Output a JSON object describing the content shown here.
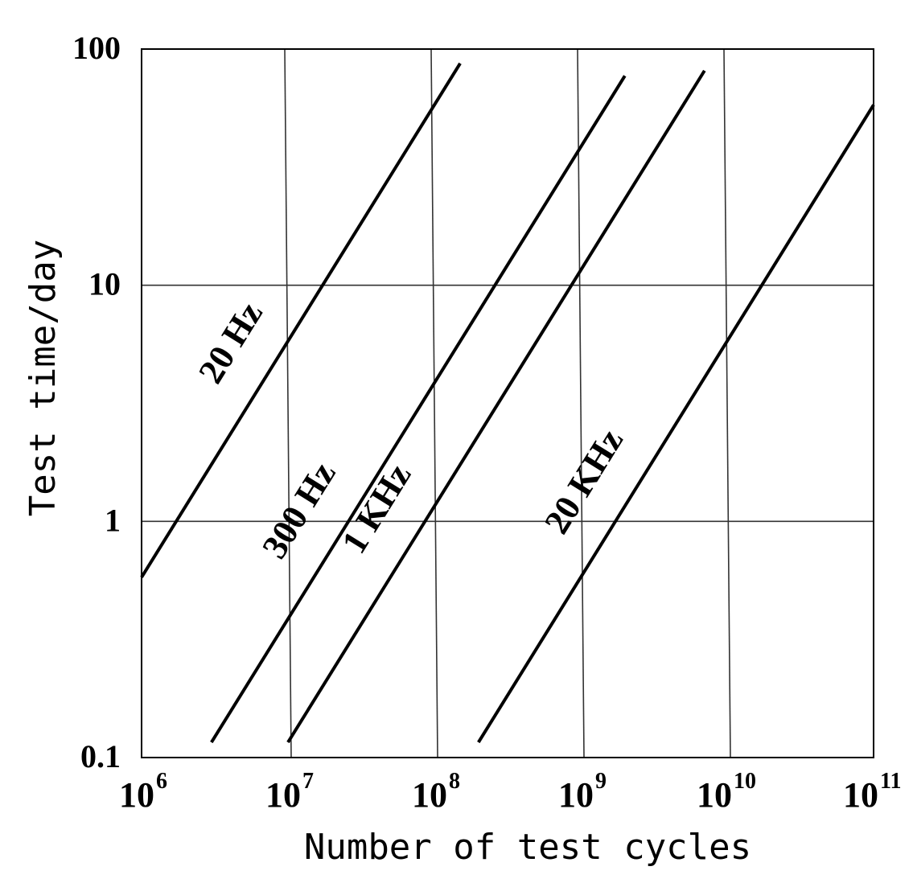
{
  "chart_data": {
    "type": "line",
    "xlabel": "Number of test cycles",
    "ylabel": "Test time/day",
    "x_scale": "log",
    "y_scale": "log",
    "xlim": [
      1000000,
      100000000000
    ],
    "ylim": [
      0.1,
      100
    ],
    "x_ticks": [
      {
        "base": "10",
        "exp": "6"
      },
      {
        "base": "10",
        "exp": "7"
      },
      {
        "base": "10",
        "exp": "8"
      },
      {
        "base": "10",
        "exp": "9"
      },
      {
        "base": "10",
        "exp": "10"
      },
      {
        "base": "10",
        "exp": "11"
      }
    ],
    "x_tick_values": [
      1000000,
      10000000,
      100000000,
      1000000000,
      10000000000,
      100000000000
    ],
    "y_ticks": [
      "0.1",
      "1",
      "10",
      "100"
    ],
    "y_tick_values": [
      0.1,
      1,
      10,
      100
    ],
    "grid": true,
    "series": [
      {
        "name": "20 Hz",
        "x": [
          1000000,
          150000000
        ],
        "y": [
          0.58,
          87
        ]
      },
      {
        "name": "300 Hz",
        "x": [
          3000000,
          2000000000
        ],
        "y": [
          0.116,
          77
        ]
      },
      {
        "name": "1 KHz",
        "x": [
          10000000,
          7000000000
        ],
        "y": [
          0.116,
          81
        ]
      },
      {
        "name": "20 KHz",
        "x": [
          200000000,
          100000000000
        ],
        "y": [
          0.116,
          58
        ]
      }
    ]
  }
}
